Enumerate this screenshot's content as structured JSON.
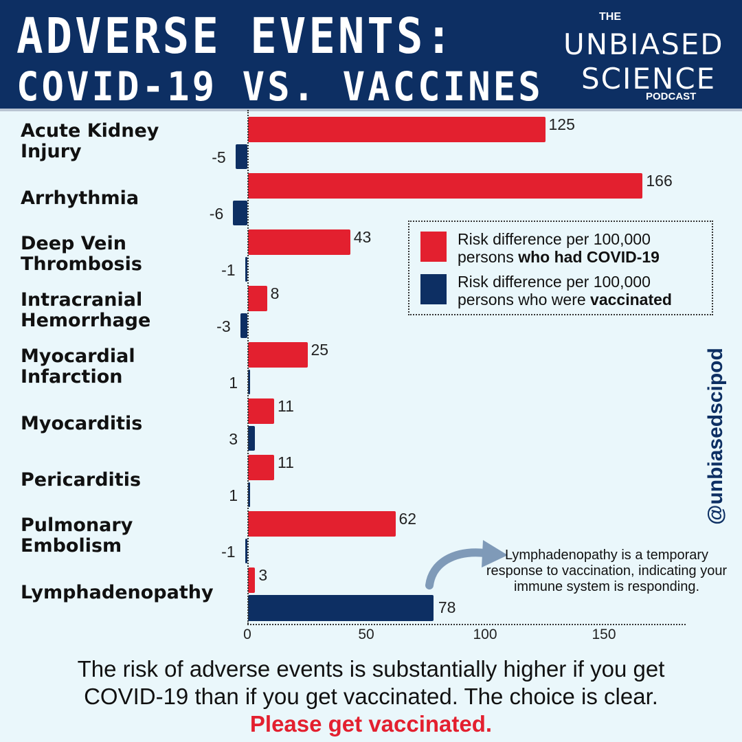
{
  "header": {
    "title_line1": "ADVERSE EVENTS:",
    "title_line2": "COVID-19 VS. VACCINES",
    "logo": {
      "the": "THE",
      "unbiased": "UNBIASED",
      "science": "SCIENCE",
      "podcast": "PODCAST"
    }
  },
  "colors": {
    "covid": "#e3202f",
    "vaccine": "#0d2f63",
    "background": "#eaf7fb",
    "header": "#0d2f63"
  },
  "chart_data": {
    "type": "bar",
    "orientation": "horizontal",
    "categories": [
      "Acute Kidney\nInjury",
      "Arrhythmia",
      "Deep Vein\nThrombosis",
      "Intracranial\nHemorrhage",
      "Myocardial\nInfarction",
      "Myocarditis",
      "Pericarditis",
      "Pulmonary\nEmbolism",
      "Lymphadenopathy"
    ],
    "series": [
      {
        "name": "Risk difference per 100,000 persons who had COVID-19",
        "values": [
          125,
          166,
          43,
          8,
          25,
          11,
          11,
          62,
          3
        ]
      },
      {
        "name": "Risk difference per 100,000 persons who were vaccinated",
        "values": [
          -5,
          -6,
          -1,
          -3,
          1,
          3,
          1,
          -1,
          78
        ]
      }
    ],
    "xlim": [
      -8,
      184
    ],
    "x_ticks": [
      0,
      50,
      100,
      150
    ],
    "grid": false,
    "legend": {
      "placement": "right",
      "items": [
        {
          "line1": "Risk difference per 100,000",
          "line2_prefix": "persons ",
          "line2_bold": "who had COVID-19",
          "line2_suffix": ""
        },
        {
          "line1": "Risk difference per 100,000",
          "line2_prefix": "persons who were ",
          "line2_bold": "vaccinated",
          "line2_suffix": ""
        }
      ]
    }
  },
  "annotation": "Lymphadenopathy is a temporary response to vaccination, indicating your immune system is responding.",
  "handle": "@unbiasedscipod",
  "footer": {
    "line1": "The risk of adverse events is substantially higher if you get",
    "line2": "COVID-19 than if you get vaccinated. The choice is clear.",
    "cta": "Please get vaccinated."
  }
}
